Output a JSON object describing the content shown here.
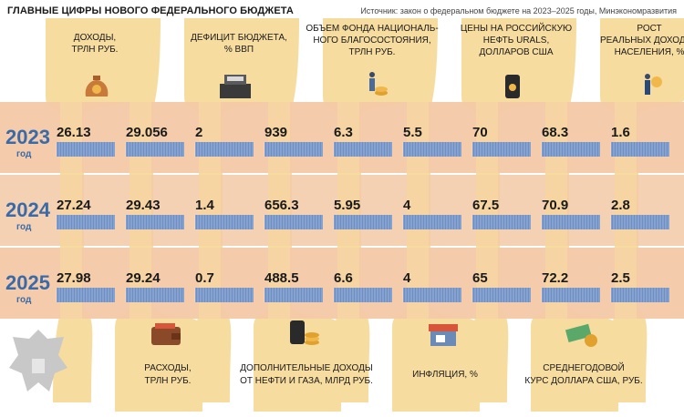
{
  "header": {
    "title": "ГЛАВНЫЕ ЦИФРЫ НОВОГО ФЕДЕРАЛЬНОГО БЮДЖЕТА",
    "source": "Источник: закон о федеральном бюджете на 2023–2025 годы, Минэкономразвития"
  },
  "year_suffix": "год",
  "colors": {
    "ribbon": "#f7dca0",
    "row_bg": "#f3c9a6",
    "bar": "#6e8fc4",
    "year": "#3a6aa8"
  },
  "chart_data": {
    "type": "table",
    "years": [
      "2023",
      "2024",
      "2025"
    ],
    "indicators": [
      {
        "id": "income",
        "label_lines": [
          "ДОХОДЫ,",
          "ТРЛН РУБ."
        ],
        "position": "top",
        "icon": "money-bag-icon",
        "values": [
          "26.13",
          "27.24",
          "27.98"
        ]
      },
      {
        "id": "expenses",
        "label_lines": [
          "РАСХОДЫ,",
          "ТРЛН РУБ."
        ],
        "position": "bottom",
        "icon": "wallet-icon",
        "values": [
          "29.056",
          "29.43",
          "29.24"
        ]
      },
      {
        "id": "deficit",
        "label_lines": [
          "ДЕФИЦИТ БЮДЖЕТА,",
          "% ВВП"
        ],
        "position": "top",
        "icon": "cash-register-icon",
        "values": [
          "2",
          "1.4",
          "0.7"
        ]
      },
      {
        "id": "oilgas",
        "label_lines": [
          "ДОПОЛНИТЕЛЬНЫЕ ДОХОДЫ",
          "ОТ НЕФТИ И ГАЗА, МЛРД РУБ."
        ],
        "position": "bottom",
        "icon": "oil-barrel-coins-icon",
        "values": [
          "939",
          "656.3",
          "488.5"
        ]
      },
      {
        "id": "nwf",
        "label_lines": [
          "ОБЪЕМ ФОНДА НАЦИОНАЛЬ-",
          "НОГО БЛАГОСОСТОЯНИЯ,",
          "ТРЛН РУБ."
        ],
        "position": "top",
        "icon": "person-coins-icon",
        "values": [
          "6.3",
          "5.95",
          "6.6"
        ]
      },
      {
        "id": "inflation",
        "label_lines": [
          "ИНФЛЯЦИЯ, %"
        ],
        "position": "bottom",
        "icon": "shop-icon",
        "values": [
          "5.5",
          "4",
          "4"
        ]
      },
      {
        "id": "urals",
        "label_lines": [
          "ЦЕНЫ НА РОССИЙСКУЮ",
          "НЕФТЬ URALS,",
          "ДОЛЛАРОВ США"
        ],
        "position": "top",
        "icon": "oil-barrel-icon",
        "values": [
          "70",
          "67.5",
          "65"
        ]
      },
      {
        "id": "usd",
        "label_lines": [
          "СРЕДНЕГОДОВОЙ",
          "КУРС ДОЛЛАРА США, РУБ."
        ],
        "position": "bottom",
        "icon": "banknotes-coins-icon",
        "values": [
          "68.3",
          "70.9",
          "72.2"
        ]
      },
      {
        "id": "income_growth",
        "label_lines": [
          "РОСТ",
          "РЕАЛЬНЫХ ДОХОДОВ",
          "НАСЕЛЕНИЯ, %"
        ],
        "position": "top",
        "icon": "person-ruble-icon",
        "values": [
          "1.6",
          "2.8",
          "2.5"
        ]
      }
    ]
  }
}
